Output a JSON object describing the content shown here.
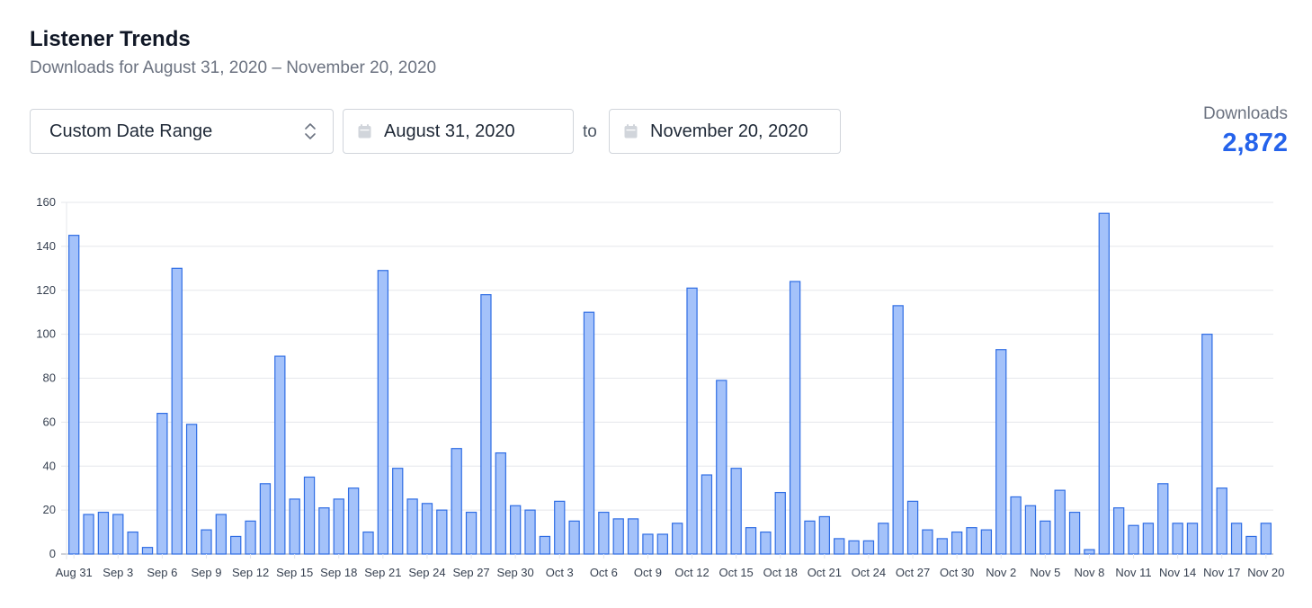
{
  "header": {
    "title": "Listener Trends",
    "subtitle": "Downloads for August 31, 2020 – November 20, 2020"
  },
  "controls": {
    "range_select": "Custom Date Range",
    "start_date": "August 31, 2020",
    "to_label": "to",
    "end_date": "November 20, 2020"
  },
  "summary": {
    "label": "Downloads",
    "value": "2,872"
  },
  "colors": {
    "bar_fill": "#a4c2fa",
    "bar_stroke": "#2f6de4",
    "accent": "#2563eb"
  },
  "chart_data": {
    "type": "bar",
    "ylim": [
      0,
      160
    ],
    "yticks": [
      0,
      20,
      40,
      60,
      80,
      100,
      120,
      140,
      160
    ],
    "grid": true,
    "x_tick_labels": [
      "Aug 31",
      "Sep 3",
      "Sep 6",
      "Sep 9",
      "Sep 12",
      "Sep 15",
      "Sep 18",
      "Sep 21",
      "Sep 24",
      "Sep 27",
      "Sep 30",
      "Oct 3",
      "Oct 6",
      "Oct 9",
      "Oct 12",
      "Oct 15",
      "Oct 18",
      "Oct 21",
      "Oct 24",
      "Oct 27",
      "Oct 30",
      "Nov 2",
      "Nov 5",
      "Nov 8",
      "Nov 11",
      "Nov 14",
      "Nov 17",
      "Nov 20"
    ],
    "x_tick_every": 3,
    "values": [
      145,
      18,
      19,
      18,
      10,
      3,
      64,
      130,
      59,
      11,
      18,
      8,
      15,
      32,
      90,
      25,
      35,
      21,
      25,
      30,
      10,
      129,
      39,
      25,
      23,
      20,
      48,
      19,
      118,
      46,
      22,
      20,
      8,
      24,
      15,
      110,
      19,
      16,
      16,
      9,
      9,
      14,
      121,
      36,
      79,
      39,
      12,
      10,
      28,
      124,
      15,
      17,
      7,
      6,
      6,
      14,
      113,
      24,
      11,
      7,
      10,
      12,
      11,
      93,
      26,
      22,
      15,
      29,
      19,
      2,
      155,
      21,
      13,
      14,
      32,
      14,
      14,
      100,
      30,
      14,
      8,
      14
    ]
  }
}
